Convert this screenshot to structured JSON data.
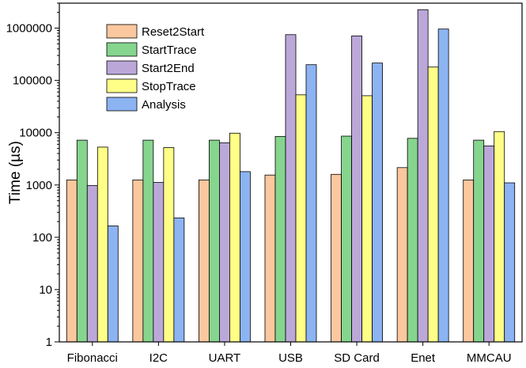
{
  "chart_data": {
    "type": "bar",
    "scale": "log",
    "title": "",
    "xlabel": "",
    "ylabel": "Time (µs)",
    "ylim": [
      1,
      3000000
    ],
    "yticks": [
      1,
      10,
      100,
      1000,
      10000,
      100000,
      1000000
    ],
    "ytick_labels": [
      "1",
      "10",
      "100",
      "1000",
      "10000",
      "100000",
      "1000000"
    ],
    "legend_position": "top-left",
    "categories": [
      "Fibonacci",
      "I2C",
      "UART",
      "USB",
      "SD Card",
      "Enet",
      "MMCAU"
    ],
    "series": [
      {
        "name": "Reset2Start",
        "color": "#fbc79e",
        "values": [
          1250,
          1250,
          1250,
          1550,
          1600,
          2150,
          1250
        ]
      },
      {
        "name": "StartTrace",
        "color": "#86d58e",
        "values": [
          7200,
          7200,
          7200,
          8500,
          8600,
          7800,
          7200
        ]
      },
      {
        "name": "Start2End",
        "color": "#bba8d9",
        "values": [
          980,
          1120,
          6400,
          750000,
          710000,
          2250000,
          5600
        ]
      },
      {
        "name": "StopTrace",
        "color": "#ffff88",
        "values": [
          5300,
          5200,
          9800,
          53000,
          51000,
          180000,
          10500
        ]
      },
      {
        "name": "Analysis",
        "color": "#8cb3f2",
        "values": [
          165,
          235,
          1800,
          200000,
          215000,
          960000,
          1100
        ]
      }
    ]
  }
}
